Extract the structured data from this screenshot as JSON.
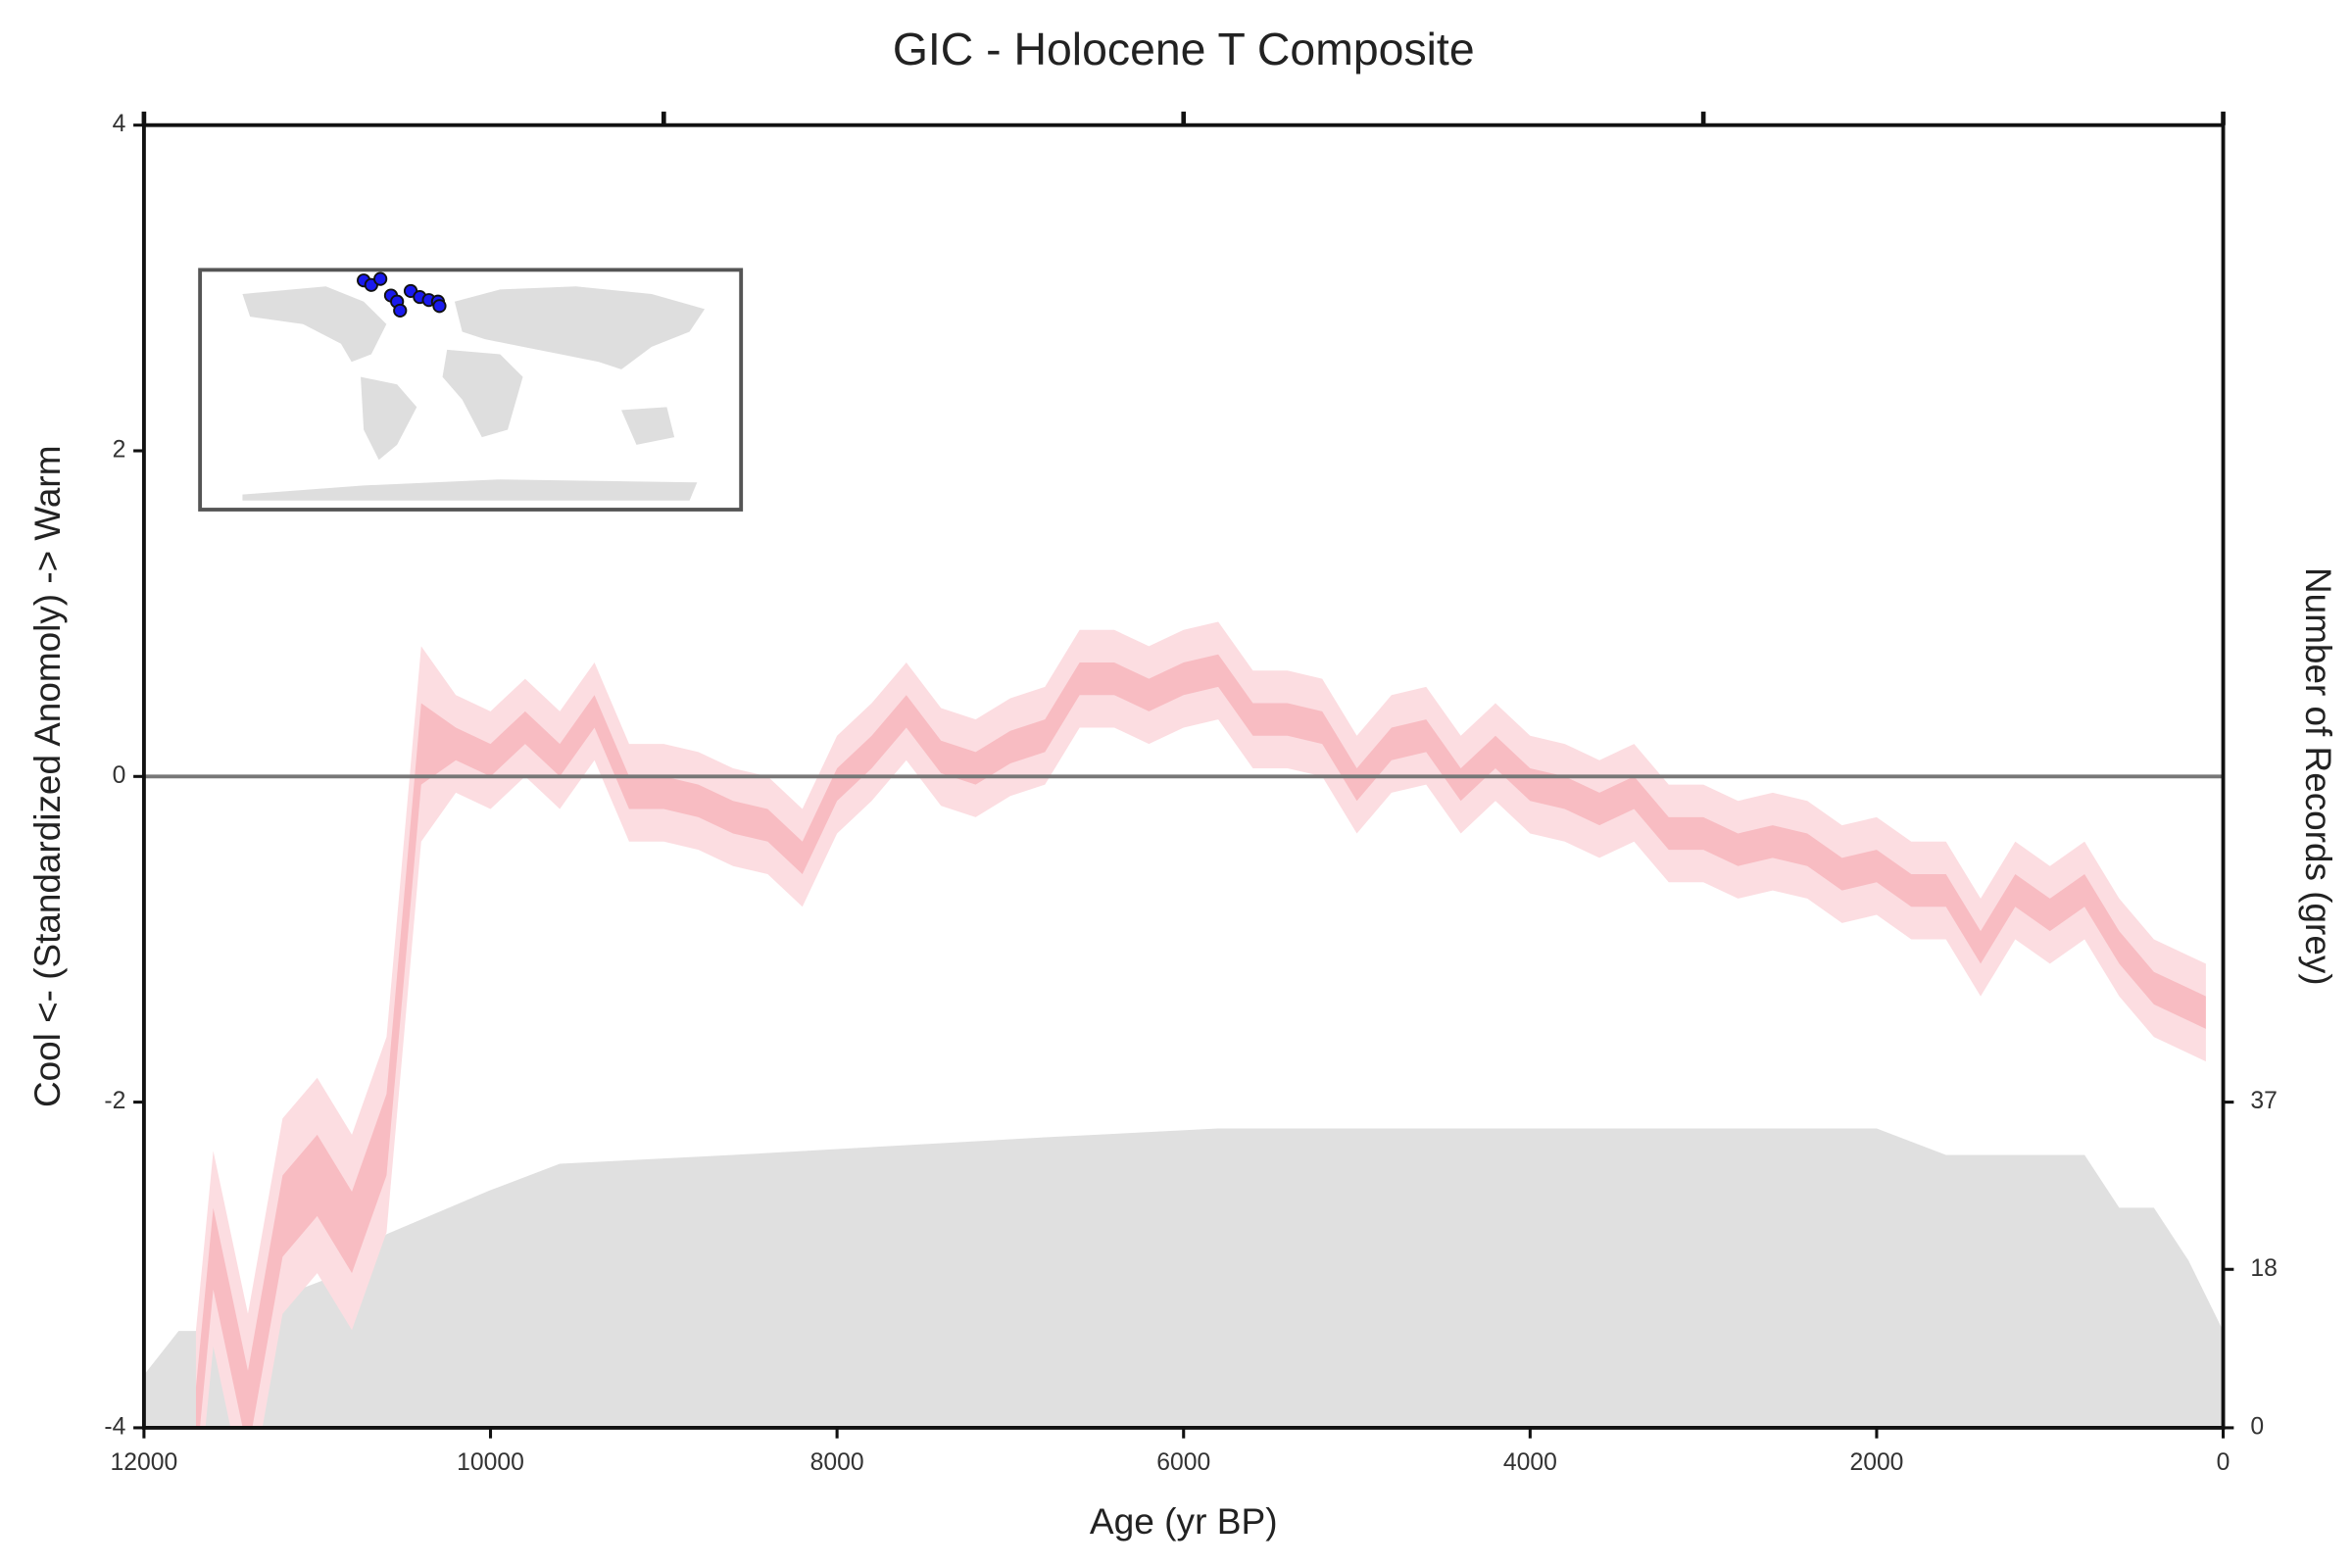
{
  "chart_data": {
    "type": "line",
    "title": "GIC - Holocene T Composite",
    "xlabel": "Age (yr BP)",
    "ylabel": "Cool <- (Standardized Anomoly) -> Warm",
    "y2label": "Number of Records (grey)",
    "xlim": [
      12000,
      0
    ],
    "xticks": [
      12000,
      10000,
      8000,
      6000,
      4000,
      2000,
      0
    ],
    "x2ticks": [
      12000,
      9000,
      6000,
      3000,
      0
    ],
    "ylim": [
      -4,
      4
    ],
    "yticks": [
      -4,
      -2,
      0,
      2,
      4
    ],
    "y2lim": [
      0,
      148
    ],
    "y2ticks": [
      0,
      18,
      37
    ],
    "hline": 0,
    "x": [
      11700,
      11600,
      11400,
      11200,
      11000,
      10800,
      10600,
      10400,
      10200,
      10000,
      9800,
      9600,
      9400,
      9200,
      9000,
      8800,
      8600,
      8400,
      8200,
      8000,
      7800,
      7600,
      7400,
      7200,
      7000,
      6800,
      6600,
      6400,
      6200,
      6000,
      5800,
      5600,
      5400,
      5200,
      5000,
      4800,
      4600,
      4400,
      4200,
      4000,
      3800,
      3600,
      3400,
      3200,
      3000,
      2800,
      2600,
      2400,
      2200,
      2000,
      1800,
      1600,
      1400,
      1200,
      1000,
      800,
      600,
      400,
      200,
      100
    ],
    "series": [
      {
        "color": "#e88489",
        "values": [
          -4.0,
          -2.9,
          -3.9,
          -2.7,
          -2.45,
          -2.8,
          -2.2,
          0.2,
          0.2,
          0.1,
          0.3,
          0.1,
          0.4,
          -0.1,
          -0.1,
          -0.15,
          -0.25,
          -0.3,
          -0.5,
          -0.05,
          0.15,
          0.4,
          0.12,
          0.05,
          0.18,
          0.25,
          0.6,
          0.6,
          0.5,
          0.6,
          0.65,
          0.35,
          0.35,
          0.3,
          -0.05,
          0.2,
          0.25,
          -0.05,
          0.15,
          -0.05,
          -0.1,
          -0.2,
          -0.1,
          -0.35,
          -0.35,
          -0.45,
          -0.4,
          -0.45,
          -0.6,
          -0.55,
          -0.7,
          -0.7,
          -1.05,
          -0.7,
          -0.85,
          -0.7,
          -1.05,
          -1.3,
          -1.4,
          -1.45
        ]
      }
    ],
    "bands": [
      {
        "color": "#fcdde1",
        "upper": [
          -3.4,
          -2.3,
          -3.3,
          -2.1,
          -1.85,
          -2.2,
          -1.6,
          0.8,
          0.5,
          0.4,
          0.6,
          0.4,
          0.7,
          0.2,
          0.2,
          0.15,
          0.05,
          0,
          -0.2,
          0.25,
          0.45,
          0.7,
          0.42,
          0.35,
          0.48,
          0.55,
          0.9,
          0.9,
          0.8,
          0.9,
          0.95,
          0.65,
          0.65,
          0.6,
          0.25,
          0.5,
          0.55,
          0.25,
          0.45,
          0.25,
          0.2,
          0.1,
          0.2,
          -0.05,
          -0.05,
          -0.15,
          -0.1,
          -0.15,
          -0.3,
          -0.25,
          -0.4,
          -0.4,
          -0.75,
          -0.4,
          -0.55,
          -0.4,
          -0.75,
          -1.0,
          -1.1,
          -1.15
        ],
        "lower": [
          -4.6,
          -3.5,
          -4.5,
          -3.3,
          -3.05,
          -3.4,
          -2.8,
          -0.4,
          -0.1,
          -0.2,
          0,
          -0.2,
          0.1,
          -0.4,
          -0.4,
          -0.45,
          -0.55,
          -0.6,
          -0.8,
          -0.35,
          -0.15,
          0.1,
          -0.18,
          -0.25,
          -0.12,
          -0.05,
          0.3,
          0.3,
          0.2,
          0.3,
          0.35,
          0.05,
          0.05,
          0,
          -0.35,
          -0.1,
          -0.05,
          -0.35,
          -0.15,
          -0.35,
          -0.4,
          -0.5,
          -0.4,
          -0.65,
          -0.65,
          -0.75,
          -0.7,
          -0.75,
          -0.9,
          -0.85,
          -1.0,
          -1.0,
          -1.35,
          -1.0,
          -1.15,
          -1.0,
          -1.35,
          -1.6,
          -1.7,
          -1.75
        ]
      },
      {
        "color": "#f8bcc2",
        "upper": [
          -3.75,
          -2.65,
          -3.65,
          -2.45,
          -2.2,
          -2.55,
          -1.95,
          0.45,
          0.3,
          0.2,
          0.4,
          0.2,
          0.5,
          0,
          0,
          -0.05,
          -0.15,
          -0.2,
          -0.4,
          0.05,
          0.25,
          0.5,
          0.22,
          0.15,
          0.28,
          0.35,
          0.7,
          0.7,
          0.6,
          0.7,
          0.75,
          0.45,
          0.45,
          0.4,
          0.05,
          0.3,
          0.35,
          0.05,
          0.25,
          0.05,
          0,
          -0.1,
          0,
          -0.25,
          -0.25,
          -0.35,
          -0.3,
          -0.35,
          -0.5,
          -0.45,
          -0.6,
          -0.6,
          -0.95,
          -0.6,
          -0.75,
          -0.6,
          -0.95,
          -1.2,
          -1.3,
          -1.35
        ],
        "lower": [
          -4.25,
          -3.15,
          -4.15,
          -2.95,
          -2.7,
          -3.05,
          -2.45,
          -0.05,
          0.1,
          0,
          0.2,
          0,
          0.3,
          -0.2,
          -0.2,
          -0.25,
          -0.35,
          -0.4,
          -0.6,
          -0.15,
          0.05,
          0.3,
          0.02,
          -0.05,
          0.08,
          0.15,
          0.5,
          0.5,
          0.4,
          0.5,
          0.55,
          0.25,
          0.25,
          0.2,
          -0.15,
          0.1,
          0.15,
          -0.15,
          0.05,
          -0.15,
          -0.2,
          -0.3,
          -0.2,
          -0.45,
          -0.45,
          -0.55,
          -0.5,
          -0.55,
          -0.7,
          -0.65,
          -0.8,
          -0.8,
          -1.15,
          -0.8,
          -0.95,
          -0.8,
          -1.15,
          -1.4,
          -1.5,
          -1.55
        ]
      }
    ],
    "records": {
      "color": "#e0e0e0",
      "axis": "y2",
      "x": [
        12000,
        11800,
        11600,
        11200,
        10800,
        10600,
        10000,
        9600,
        8600,
        6800,
        5800,
        2000,
        1600,
        800,
        600,
        400,
        200,
        0
      ],
      "values": [
        6,
        11,
        11,
        15,
        18,
        22,
        27,
        30,
        31,
        33,
        34,
        34,
        31,
        31,
        25,
        25,
        19,
        11
      ]
    }
  }
}
